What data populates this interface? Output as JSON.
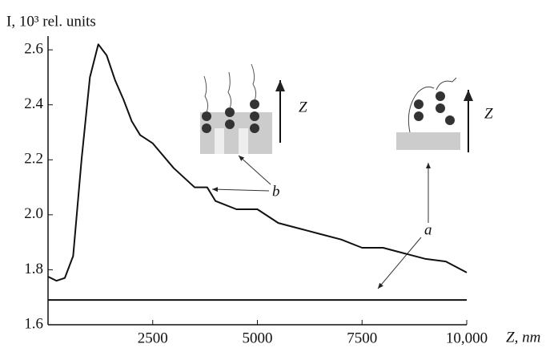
{
  "chart_data": {
    "type": "line",
    "y_label": "I, 10³ rel. units",
    "x_label": "Z, nm",
    "x": [
      0,
      200,
      400,
      600,
      800,
      1000,
      1200,
      1400,
      1600,
      1800,
      2000,
      2200,
      2500,
      3000,
      3500,
      3800,
      4000,
      4500,
      5000,
      5500,
      6000,
      6500,
      7000,
      7500,
      8000,
      8500,
      9000,
      9500,
      10000
    ],
    "series": [
      {
        "name": "b",
        "color": "#111111",
        "values": [
          1.775,
          1.76,
          1.77,
          1.85,
          2.2,
          2.5,
          2.62,
          2.58,
          2.49,
          2.42,
          2.34,
          2.29,
          2.26,
          2.17,
          2.1,
          2.1,
          2.05,
          2.02,
          2.02,
          1.97,
          1.95,
          1.93,
          1.91,
          1.88,
          1.88,
          1.86,
          1.84,
          1.83,
          1.79
        ]
      },
      {
        "name": "a",
        "color": "#111111",
        "values": [
          1.69,
          1.69,
          1.69,
          1.69,
          1.69,
          1.69,
          1.69,
          1.69,
          1.69,
          1.69,
          1.69,
          1.69,
          1.69,
          1.69,
          1.69,
          1.69,
          1.69,
          1.69,
          1.69,
          1.69,
          1.69,
          1.69,
          1.69,
          1.69,
          1.69,
          1.69,
          1.69,
          1.69,
          1.69
        ]
      }
    ],
    "xlim": [
      0,
      10000
    ],
    "xticks": [
      2500,
      5000,
      7500,
      {
        "value": 10000,
        "label": "10,000"
      }
    ],
    "ylim": [
      1.6,
      2.65
    ],
    "yticks": [
      1.6,
      1.8,
      {
        "value": 2,
        "label": "2.0"
      },
      2.2,
      2.4,
      2.6
    ],
    "annotations": [
      "a",
      "b",
      "Z",
      "Z"
    ]
  }
}
